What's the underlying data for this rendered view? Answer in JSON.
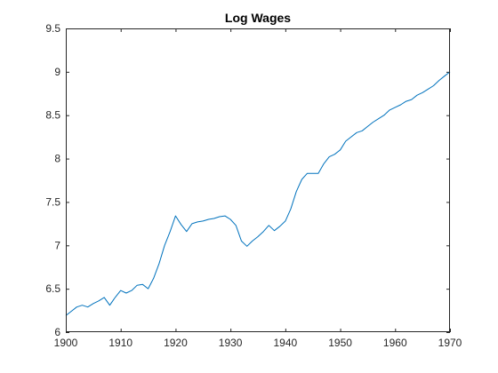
{
  "chart_data": {
    "type": "line",
    "title": "Log Wages",
    "xlabel": "",
    "ylabel": "",
    "xlim": [
      1900,
      1970
    ],
    "ylim": [
      6,
      9.5
    ],
    "xticks": [
      1900,
      1910,
      1920,
      1930,
      1940,
      1950,
      1960,
      1970
    ],
    "xtick_labels": [
      "1900",
      "1910",
      "1920",
      "1930",
      "1940",
      "1950",
      "1960",
      "1970"
    ],
    "yticks": [
      6,
      6.5,
      7,
      7.5,
      8,
      8.5,
      9,
      9.5
    ],
    "ytick_labels": [
      "6",
      "6.5",
      "7",
      "7.5",
      "8",
      "8.5",
      "9",
      "9.5"
    ],
    "grid": false,
    "line_color": "#0072BD",
    "series": [
      {
        "x": [
          1900,
          1901,
          1902,
          1903,
          1904,
          1905,
          1906,
          1907,
          1908,
          1909,
          1910,
          1911,
          1912,
          1913,
          1914,
          1915,
          1916,
          1917,
          1918,
          1919,
          1920,
          1921,
          1922,
          1923,
          1924,
          1925,
          1926,
          1927,
          1928,
          1929,
          1930,
          1931,
          1932,
          1933,
          1934,
          1935,
          1936,
          1937,
          1938,
          1939,
          1940,
          1941,
          1942,
          1943,
          1944,
          1945,
          1946,
          1947,
          1948,
          1949,
          1950,
          1951,
          1952,
          1953,
          1954,
          1955,
          1956,
          1957,
          1958,
          1959,
          1960,
          1961,
          1962,
          1963,
          1964,
          1965,
          1966,
          1967,
          1968,
          1969,
          1970
        ],
        "y": [
          6.19,
          6.24,
          6.29,
          6.31,
          6.29,
          6.33,
          6.36,
          6.4,
          6.31,
          6.4,
          6.48,
          6.45,
          6.48,
          6.54,
          6.55,
          6.5,
          6.62,
          6.79,
          7.0,
          7.16,
          7.34,
          7.24,
          7.16,
          7.25,
          7.27,
          7.28,
          7.3,
          7.31,
          7.33,
          7.34,
          7.3,
          7.23,
          7.05,
          6.99,
          7.05,
          7.1,
          7.16,
          7.23,
          7.17,
          7.22,
          7.28,
          7.42,
          7.62,
          7.76,
          7.83,
          7.83,
          7.83,
          7.94,
          8.02,
          8.05,
          8.1,
          8.2,
          8.25,
          8.3,
          8.32,
          8.37,
          8.42,
          8.46,
          8.5,
          8.56,
          8.59,
          8.62,
          8.66,
          8.68,
          8.73,
          8.76,
          8.8,
          8.84,
          8.9,
          8.95,
          9.0
        ]
      }
    ]
  }
}
